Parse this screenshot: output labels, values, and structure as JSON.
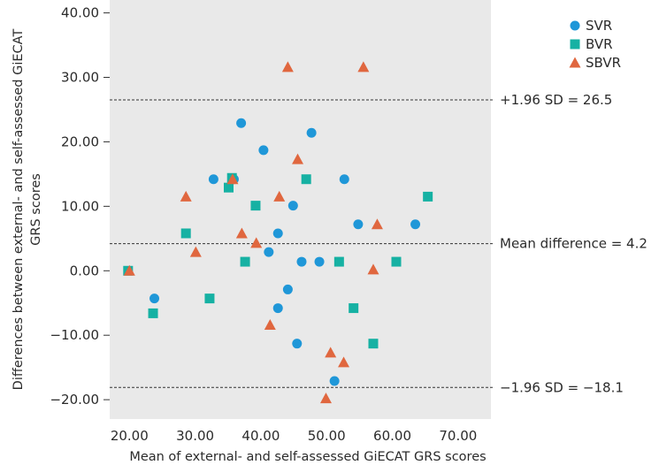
{
  "chart_data": {
    "type": "scatter",
    "title": "",
    "xlabel": "Mean of external- and self-assessed GiECAT GRS scores",
    "ylabel_lines": [
      "Differences between external- and self-assessed GiECAT",
      "GRS scores"
    ],
    "xlim": [
      17,
      75
    ],
    "ylim": [
      -23,
      42
    ],
    "xticks": [
      20,
      30,
      40,
      50,
      60,
      70
    ],
    "xtick_labels": [
      "20.00",
      "30.00",
      "40.00",
      "50.00",
      "60.00",
      "70.00"
    ],
    "yticks": [
      -20,
      -10,
      0,
      10,
      20,
      30,
      40
    ],
    "ytick_labels": [
      "−20.00",
      "−10.00",
      "0.00",
      "10.00",
      "20.00",
      "30.00",
      "40.00"
    ],
    "legend_position": "top-right",
    "grid": false,
    "reference_lines": [
      {
        "y": 26.5,
        "label": "+1.96 SD = 26.5"
      },
      {
        "y": 4.2,
        "label": "Mean difference = 4.2"
      },
      {
        "y": -18.1,
        "label": "−1.96 SD = −18.1"
      }
    ],
    "series": [
      {
        "name": "SVR",
        "marker": "circle",
        "color": "#1f97d8",
        "points": [
          {
            "x": 23.8,
            "y": -4.3
          },
          {
            "x": 32.8,
            "y": 14.2
          },
          {
            "x": 35.9,
            "y": 14.2
          },
          {
            "x": 37.0,
            "y": 22.9
          },
          {
            "x": 40.4,
            "y": 18.7
          },
          {
            "x": 41.2,
            "y": 2.9
          },
          {
            "x": 42.6,
            "y": 5.8
          },
          {
            "x": 42.6,
            "y": -5.8
          },
          {
            "x": 44.1,
            "y": -2.9
          },
          {
            "x": 44.9,
            "y": 10.1
          },
          {
            "x": 45.5,
            "y": -11.3
          },
          {
            "x": 46.2,
            "y": 1.4
          },
          {
            "x": 47.7,
            "y": 21.4
          },
          {
            "x": 48.9,
            "y": 1.4
          },
          {
            "x": 51.2,
            "y": -17.1
          },
          {
            "x": 52.7,
            "y": 14.2
          },
          {
            "x": 54.8,
            "y": 7.2
          },
          {
            "x": 63.5,
            "y": 7.2
          }
        ]
      },
      {
        "name": "BVR",
        "marker": "square",
        "color": "#16b1a3",
        "points": [
          {
            "x": 19.8,
            "y": 0.0
          },
          {
            "x": 23.6,
            "y": -6.6
          },
          {
            "x": 28.6,
            "y": 5.8
          },
          {
            "x": 32.2,
            "y": -4.3
          },
          {
            "x": 35.1,
            "y": 12.9
          },
          {
            "x": 35.6,
            "y": 14.4
          },
          {
            "x": 37.6,
            "y": 1.4
          },
          {
            "x": 39.2,
            "y": 10.1
          },
          {
            "x": 46.9,
            "y": 14.2
          },
          {
            "x": 51.9,
            "y": 1.4
          },
          {
            "x": 54.1,
            "y": -5.8
          },
          {
            "x": 57.1,
            "y": -11.3
          },
          {
            "x": 60.6,
            "y": 1.4
          },
          {
            "x": 65.4,
            "y": 11.5
          }
        ]
      },
      {
        "name": "SBVR",
        "marker": "triangle",
        "color": "#e0673f",
        "points": [
          {
            "x": 20.0,
            "y": 0.0
          },
          {
            "x": 28.6,
            "y": 11.5
          },
          {
            "x": 30.1,
            "y": 2.9
          },
          {
            "x": 35.7,
            "y": 14.2
          },
          {
            "x": 37.1,
            "y": 5.8
          },
          {
            "x": 39.3,
            "y": 4.3
          },
          {
            "x": 41.4,
            "y": -8.4
          },
          {
            "x": 42.8,
            "y": 11.5
          },
          {
            "x": 44.1,
            "y": 31.6
          },
          {
            "x": 45.6,
            "y": 17.3
          },
          {
            "x": 49.9,
            "y": -19.8
          },
          {
            "x": 50.6,
            "y": -12.7
          },
          {
            "x": 52.6,
            "y": -14.2
          },
          {
            "x": 55.6,
            "y": 31.6
          },
          {
            "x": 57.1,
            "y": 0.2
          },
          {
            "x": 57.7,
            "y": 7.2
          }
        ]
      }
    ]
  }
}
